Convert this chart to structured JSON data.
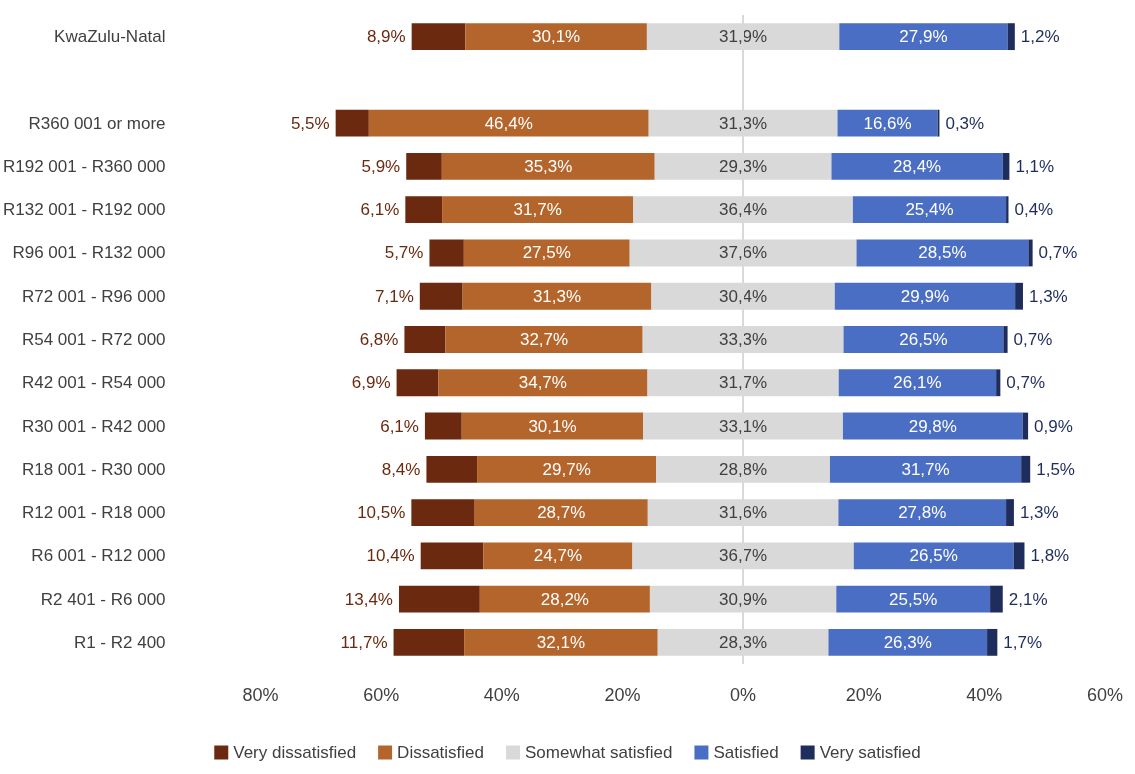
{
  "chart_data": {
    "type": "bar",
    "orientation": "horizontal",
    "categories": [
      "KwaZulu-Natal",
      null,
      "R360 001 or more",
      "R192 001 - R360 000",
      "R132 001 - R192 000",
      "R96 001 - R132 000",
      "R72 001 - R96 000",
      "R54 001 - R72 000",
      "R42 001 - R54 000",
      "R30 001 - R42 000",
      "R18 001 - R30 000",
      "R12 001 - R18 000",
      "R6 001 - R12 000",
      "R2 401 - R6 000",
      "R1 - R2 400"
    ],
    "series": [
      {
        "name": "Very dissatisfied",
        "color": "#6b2a10",
        "values": [
          8.9,
          null,
          5.5,
          5.9,
          6.1,
          5.7,
          7.1,
          6.8,
          6.9,
          6.1,
          8.4,
          10.5,
          10.4,
          13.4,
          11.7
        ],
        "base": [
          -54.95,
          null,
          -67.55,
          -55.85,
          -56.0,
          -52.0,
          -53.6,
          -56.15,
          -57.45,
          -52.75,
          -52.5,
          -55.0,
          -53.45,
          -57.05,
          -57.95
        ],
        "value_labels": [
          "8,9%",
          null,
          "5,5%",
          "5,9%",
          "6,1%",
          "5,7%",
          "7,1%",
          "6,8%",
          "6,9%",
          "6,1%",
          "8,4%",
          "10,5%",
          "10,4%",
          "13,4%",
          "11,7%"
        ]
      },
      {
        "name": "Dissatisfied",
        "color": "#b4652b",
        "values": [
          30.1,
          null,
          46.4,
          35.3,
          31.7,
          27.5,
          31.3,
          32.7,
          34.7,
          30.1,
          29.7,
          28.7,
          24.7,
          28.2,
          32.1
        ],
        "base": [
          -46.05,
          null,
          -62.05,
          -49.95,
          -49.9,
          -46.3,
          -46.5,
          -49.35,
          -50.55,
          -46.65,
          -44.1,
          -44.5,
          -43.05,
          -43.65,
          -46.25
        ],
        "value_labels": [
          "30,1%",
          null,
          "46,4%",
          "35,3%",
          "31,7%",
          "27,5%",
          "31,3%",
          "32,7%",
          "34,7%",
          "30,1%",
          "29,7%",
          "28,7%",
          "24,7%",
          "28,2%",
          "32,1%"
        ]
      },
      {
        "name": "Somewhat satisfied",
        "color": "#d9d9d9",
        "values": [
          31.9,
          null,
          31.3,
          29.3,
          36.4,
          37.6,
          30.4,
          33.3,
          31.7,
          33.1,
          28.8,
          31.6,
          36.7,
          30.9,
          28.3
        ],
        "base": [
          -15.95,
          null,
          -15.65,
          -14.65,
          -18.2,
          -18.8,
          -15.2,
          -16.65,
          -15.85,
          -16.55,
          -14.4,
          -15.8,
          -18.35,
          -15.45,
          -14.15
        ],
        "value_labels": [
          "31,9%",
          null,
          "31,3%",
          "29,3%",
          "36,4%",
          "37,6%",
          "30,4%",
          "33,3%",
          "31,7%",
          "33,1%",
          "28,8%",
          "31,6%",
          "36,7%",
          "30,9%",
          "28,3%"
        ]
      },
      {
        "name": "Satisfied",
        "color": "#4a6ec3",
        "values": [
          27.9,
          null,
          16.6,
          28.4,
          25.4,
          28.5,
          29.9,
          26.5,
          26.1,
          29.8,
          31.7,
          27.8,
          26.5,
          25.5,
          26.3
        ],
        "base": [
          15.95,
          null,
          15.65,
          14.65,
          18.2,
          18.8,
          15.2,
          16.65,
          15.85,
          16.55,
          14.4,
          15.8,
          18.35,
          15.45,
          14.15
        ],
        "value_labels": [
          "27,9%",
          null,
          "16,6%",
          "28,4%",
          "25,4%",
          "28,5%",
          "29,9%",
          "26,5%",
          "26,1%",
          "29,8%",
          "31,7%",
          "27,8%",
          "26,5%",
          "25,5%",
          "26,3%"
        ]
      },
      {
        "name": "Very satisfied",
        "color": "#1f2d5c",
        "values": [
          1.2,
          null,
          0.3,
          1.1,
          0.4,
          0.7,
          1.3,
          0.7,
          0.7,
          0.9,
          1.5,
          1.3,
          1.8,
          2.1,
          1.7
        ],
        "base": [
          43.85,
          null,
          32.25,
          43.05,
          43.6,
          47.3,
          45.1,
          43.15,
          41.95,
          46.35,
          46.1,
          43.6,
          44.85,
          40.95,
          40.45
        ],
        "value_labels": [
          "1,2%",
          null,
          "0,3%",
          "1,1%",
          "0,4%",
          "0,7%",
          "1,3%",
          "0,7%",
          "0,7%",
          "0,9%",
          "1,5%",
          "1,3%",
          "1,8%",
          "2,1%",
          "1,7%"
        ]
      }
    ],
    "xlim": [
      -80,
      60
    ],
    "xticks": [
      {
        "value": -80,
        "label": "80%"
      },
      {
        "value": -60,
        "label": "60%"
      },
      {
        "value": -40,
        "label": "40%"
      },
      {
        "value": -20,
        "label": "20%"
      },
      {
        "value": 0,
        "label": "0%"
      },
      {
        "value": 20,
        "label": "20%"
      },
      {
        "value": 40,
        "label": "40%"
      },
      {
        "value": 60,
        "label": "60%"
      }
    ],
    "ref_lines": [
      {
        "axis": "x",
        "value": 0,
        "label": null,
        "color": "#d9d9d9"
      }
    ],
    "grid": false,
    "legend": "bottom"
  }
}
